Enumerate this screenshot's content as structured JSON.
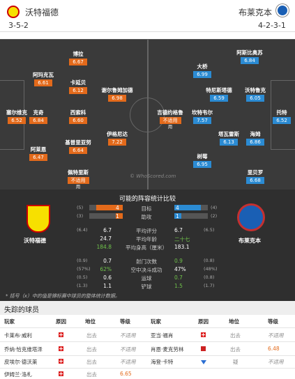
{
  "header": {
    "home_name": "沃特福德",
    "away_name": "布莱克本",
    "home_formation": "3-5-2",
    "away_formation": "4-2-3-1"
  },
  "pitch": {
    "watermark": "© WhoScored.com",
    "home_players": [
      {
        "name": "博拉",
        "rating": "6.67"
      },
      {
        "name": "阿玛克瓦",
        "rating": "6.61"
      },
      {
        "name": "卡延贝",
        "rating": "6.12"
      },
      {
        "name": "谢尔鲁姆加德",
        "rating": "6.98"
      },
      {
        "name": "塞尔维克",
        "rating": "6.52"
      },
      {
        "name": "克奇",
        "rating": "6.84"
      },
      {
        "name": "西索科",
        "rating": "6.60"
      },
      {
        "name": "吉德约格鲁",
        "rating": "不适用",
        "note": "用"
      },
      {
        "name": "伊格尼达",
        "rating": "7.22"
      },
      {
        "name": "阿莱恩",
        "rating": "6.47"
      },
      {
        "name": "基普里亚努",
        "rating": "6.64"
      },
      {
        "name": "佩特里斯",
        "rating": "不适用",
        "note": "用"
      }
    ],
    "away_players": [
      {
        "name": "阿斯比奥苏",
        "rating": "6.84"
      },
      {
        "name": "大桥",
        "rating": "6.99"
      },
      {
        "name": "特尼斯塔德",
        "rating": "6.59"
      },
      {
        "name": "沃特鲁克",
        "rating": "6.05"
      },
      {
        "name": "坎特韦尔",
        "rating": "7.57"
      },
      {
        "name": "托特",
        "rating": "6.52"
      },
      {
        "name": "塔瓦雷斯",
        "rating": "6.13"
      },
      {
        "name": "海姆",
        "rating": "6.86"
      },
      {
        "name": "树莓",
        "rating": "6.95"
      },
      {
        "name": "里贝罗",
        "rating": "6.68"
      }
    ]
  },
  "stats": {
    "title": "可能的阵容统计比较",
    "home_label": "沃特福德",
    "away_label": "布莱克本",
    "rows": [
      {
        "label": "目标",
        "lp": "(5)",
        "lv": "4",
        "rv": "4",
        "rp": "(4)",
        "lbar": 0.8,
        "rbar": 0.8
      },
      {
        "label": "助攻",
        "lp": "(3)",
        "lv": "1",
        "rv": "1",
        "rp": "(2)",
        "lbar": 0.2,
        "rbar": 0.2
      },
      {
        "label": "平均评分",
        "lp": "(6.4)",
        "lv": "6.7",
        "rv": "6.7",
        "rp": "(6.5)"
      },
      {
        "label": "平均年龄",
        "lp": "",
        "lv": "24.7",
        "rv": "二十七",
        "rp": ""
      },
      {
        "label": "平均身高（厘米）",
        "lp": "",
        "lv": "184.8",
        "rv": "183.1",
        "rp": ""
      },
      {
        "label": "射门次数",
        "lp": "(0.9)",
        "lv": "0.7",
        "rv": "0.9",
        "rp": "(0.8)"
      },
      {
        "label": "空中决斗成功",
        "lp": "(57%)",
        "lv": "62%",
        "rv": "47%",
        "rp": "(48%)"
      },
      {
        "label": "运球",
        "lp": "(0.5)",
        "lv": "0.6",
        "rv": "0.7",
        "rp": "(0.8)"
      },
      {
        "label": "铲球",
        "lp": "(1.3)",
        "lv": "1.1",
        "rv": "1.5",
        "rp": "(1.7)"
      }
    ],
    "footnote": "* 括号（x）中的值是锦标赛中球员的整体统计数据。"
  },
  "missing": {
    "title": "失踪的球员",
    "headers": {
      "player": "玩家",
      "reason": "原因",
      "position": "地位",
      "rating": "等级"
    },
    "left": [
      {
        "player": "卡莱布·威利",
        "status": "出去",
        "rating": "不适用",
        "icon": "injury"
      },
      {
        "player": "乔纳·恰克维塔泽",
        "status": "出去",
        "rating": "不适用",
        "icon": "injury"
      },
      {
        "player": "皮埃尔·德沃莱",
        "status": "出去",
        "rating": "不适用",
        "icon": "injury"
      },
      {
        "player": "伊姆兰·洛札",
        "status": "出去",
        "rating": "6.65",
        "icon": "injury"
      }
    ],
    "right": [
      {
        "player": "亚当·福肖",
        "status": "出去",
        "rating": "不适用",
        "icon": "injury"
      },
      {
        "player": "肖恩·麦克劳林",
        "status": "出去",
        "rating": "6.48",
        "icon": "card"
      },
      {
        "player": "海登·卡特",
        "status": "疑",
        "rating": "不适用",
        "icon": "doubt"
      }
    ]
  }
}
